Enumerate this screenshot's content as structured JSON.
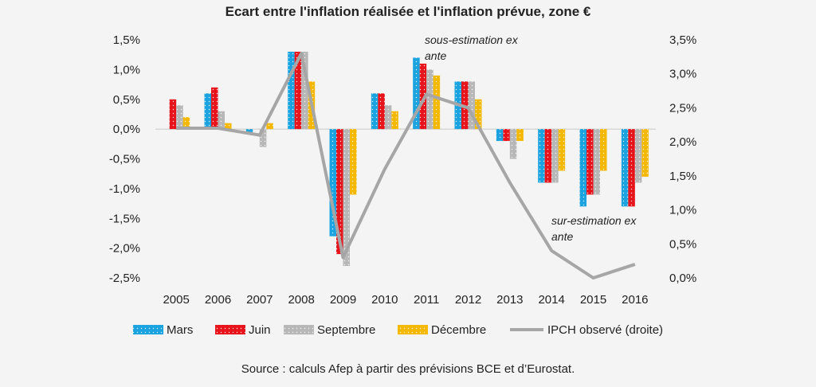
{
  "chart_data": {
    "type": "bar",
    "title": "Ecart entre l'inflation réalisée et l'inflation prévue, zone €",
    "categories": [
      "2005",
      "2006",
      "2007",
      "2008",
      "2009",
      "2010",
      "2011",
      "2012",
      "2013",
      "2014",
      "2015",
      "2016"
    ],
    "series": [
      {
        "name": "Mars",
        "color": "#1aa3e0",
        "axis": "left",
        "values": [
          0.0,
          0.6,
          -0.05,
          1.3,
          -1.8,
          0.6,
          1.2,
          0.8,
          -0.2,
          -0.9,
          -1.3,
          -1.3
        ]
      },
      {
        "name": "Juin",
        "color": "#e8141b",
        "axis": "left",
        "values": [
          0.5,
          0.7,
          0.0,
          1.3,
          -2.1,
          0.6,
          1.1,
          0.8,
          -0.2,
          -0.9,
          -1.1,
          -1.3
        ]
      },
      {
        "name": "Septembre",
        "color": "#b7b7b7",
        "axis": "left",
        "values": [
          0.4,
          0.3,
          -0.3,
          1.3,
          -2.3,
          0.4,
          1.0,
          0.8,
          -0.5,
          -0.9,
          -1.1,
          -0.9
        ]
      },
      {
        "name": "Décembre",
        "color": "#f5b800",
        "axis": "left",
        "values": [
          0.2,
          0.1,
          0.1,
          0.8,
          -1.1,
          0.3,
          0.9,
          0.5,
          -0.2,
          -0.7,
          -0.7,
          -0.8
        ]
      }
    ],
    "line_series": {
      "name": "IPCH observé (droite)",
      "color": "#a6a6a6",
      "axis": "right",
      "values": [
        2.2,
        2.2,
        2.1,
        3.3,
        0.3,
        1.6,
        2.7,
        2.5,
        1.4,
        0.4,
        0.0,
        0.2
      ]
    },
    "y_left": {
      "ylim": [
        -2.5,
        1.5
      ],
      "ticks": [
        "1,5%",
        "1,0%",
        "0,5%",
        "0,0%",
        "-0,5%",
        "-1,0%",
        "-1,5%",
        "-2,0%",
        "-2,5%"
      ]
    },
    "y_right": {
      "ylim": [
        0.0,
        3.5
      ],
      "ticks": [
        "3,5%",
        "3,0%",
        "2,5%",
        "2,0%",
        "1,5%",
        "1,0%",
        "0,5%",
        "0,0%"
      ]
    },
    "annotations": [
      "sous-estimation ex ante",
      "sur-estimation ex ante"
    ],
    "legend_position": "bottom",
    "grid": false
  },
  "annotations": {
    "over_line1": "sous-estimation ex",
    "over_line2": "ante",
    "under_line1": "sur-estimation ex",
    "under_line2": "ante"
  },
  "source": "Source : calculs Afep à partir des prévisions BCE et d’Eurostat."
}
